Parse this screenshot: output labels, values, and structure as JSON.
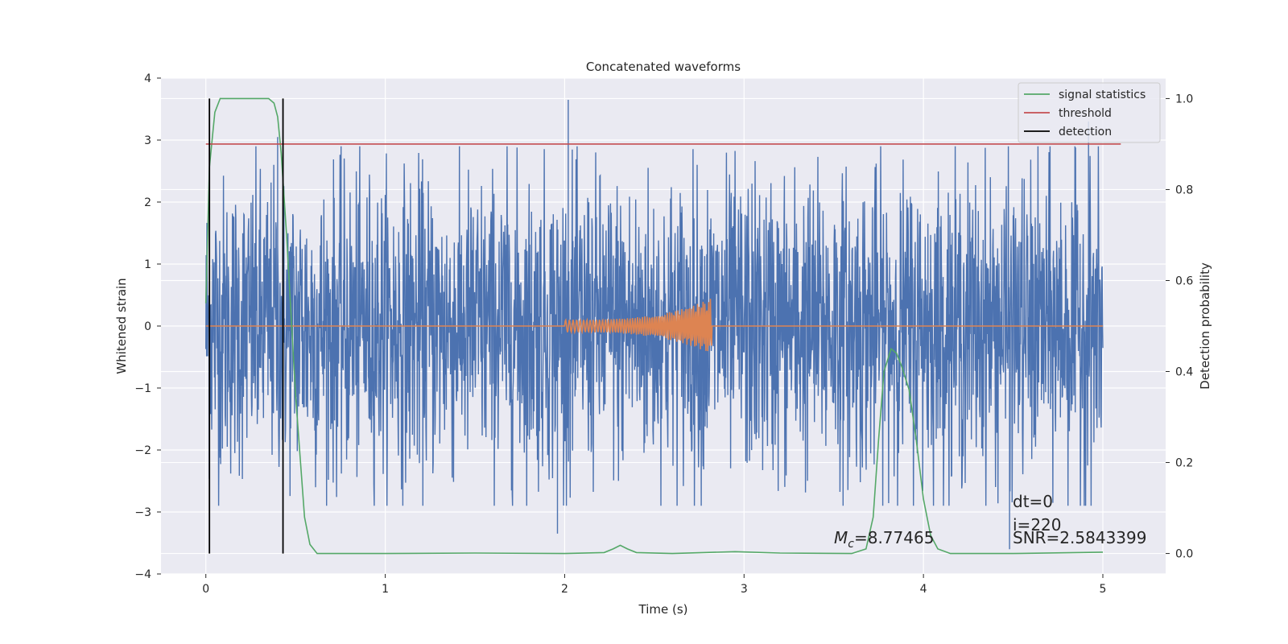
{
  "chart_data": {
    "type": "line",
    "title": "Concatenated waveforms",
    "xlabel": "Time (s)",
    "ylabel_left": "Whitened strain",
    "ylabel_right": "Detection probability",
    "xlim": [
      -0.25,
      5.35
    ],
    "ylim_left": [
      -4,
      4
    ],
    "ylim_right": [
      -0.045,
      1.045
    ],
    "x_ticks": [
      "0",
      "1",
      "2",
      "3",
      "4",
      "5"
    ],
    "x_tick_values": [
      0,
      1,
      2,
      3,
      4,
      5
    ],
    "y_left_ticks": [
      "4",
      "3",
      "2",
      "1",
      "0",
      "−1",
      "−2",
      "−3",
      "−4"
    ],
    "y_left_tick_values": [
      4,
      3,
      2,
      1,
      0,
      -1,
      -2,
      -3,
      -4
    ],
    "y_right_ticks": [
      "1.0",
      "0.8",
      "0.6",
      "0.4",
      "0.2",
      "0.0"
    ],
    "y_right_tick_values": [
      1.0,
      0.8,
      0.6,
      0.4,
      0.2,
      0.0
    ],
    "grid": true,
    "legend_position": "top-right",
    "legend": [
      {
        "label": "signal statistics",
        "color": "#55a868"
      },
      {
        "label": "threshold",
        "color": "#c44e52"
      },
      {
        "label": "detection",
        "color": "#000000"
      }
    ],
    "series": [
      {
        "kind": "noise",
        "color": "#4c72b0",
        "x_range": [
          0,
          5
        ],
        "approx_amplitude": 2.3,
        "peak_points": [
          {
            "x": 2.02,
            "y": 3.65
          },
          {
            "x": 1.96,
            "y": -3.35
          },
          {
            "x": 0.4,
            "y": 3.05
          },
          {
            "x": 4.92,
            "y": 3.3
          },
          {
            "x": 4.48,
            "y": -3.6
          }
        ]
      },
      {
        "kind": "chirp",
        "color": "#dd8452",
        "x_range": [
          0,
          5
        ],
        "chirp_start": 2.0,
        "chirp_end": 2.82,
        "start_amplitude": 0.1,
        "peak_amplitude": 0.45
      },
      {
        "name": "signal statistics",
        "color": "#55a868",
        "axis": "right",
        "x": [
          0.0,
          0.02,
          0.05,
          0.08,
          0.15,
          0.35,
          0.38,
          0.4,
          0.42,
          0.45,
          0.5,
          0.55,
          0.58,
          0.62,
          1.0,
          1.5,
          2.0,
          2.22,
          2.27,
          2.31,
          2.35,
          2.4,
          2.6,
          2.95,
          3.2,
          3.6,
          3.68,
          3.72,
          3.75,
          3.78,
          3.82,
          3.85,
          3.88,
          3.92,
          3.96,
          4.0,
          4.04,
          4.08,
          4.15,
          4.5,
          5.0
        ],
        "y": [
          0.55,
          0.85,
          0.97,
          1.0,
          1.0,
          1.0,
          0.99,
          0.96,
          0.88,
          0.7,
          0.35,
          0.08,
          0.02,
          0.0,
          0.0,
          0.001,
          0.0,
          0.002,
          0.01,
          0.018,
          0.01,
          0.002,
          0.0,
          0.004,
          0.001,
          0.0,
          0.01,
          0.08,
          0.25,
          0.4,
          0.45,
          0.44,
          0.41,
          0.36,
          0.25,
          0.12,
          0.04,
          0.01,
          0.0,
          0.0,
          0.003
        ]
      },
      {
        "name": "threshold",
        "color": "#c44e52",
        "axis": "right",
        "x": [
          0,
          5.1
        ],
        "y": [
          0.9,
          0.9
        ]
      },
      {
        "name": "detection",
        "color": "#000000",
        "axis": "right",
        "vlines": [
          0.02,
          0.43
        ],
        "y_range": [
          0.0,
          1.0
        ]
      }
    ],
    "annotations": [
      {
        "text": "dt=0"
      },
      {
        "text": "i=220"
      },
      {
        "text_prefix": "M",
        "text_sub": "c",
        "text_value": "=8.77465"
      },
      {
        "text": "SNR=2.5843399"
      }
    ]
  }
}
